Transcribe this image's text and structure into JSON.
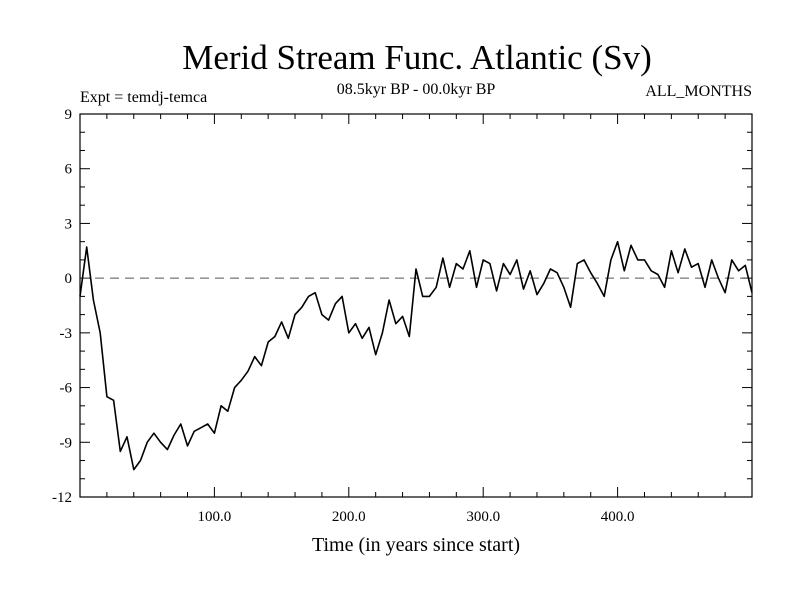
{
  "chart_data": {
    "type": "line",
    "title": "Merid Stream Func. Atlantic (Sv)",
    "subtitle_left": "Expt = temdj-temca",
    "subtitle_center": "08.5kyr BP - 00.0kyr BP",
    "subtitle_right": "ALL_MONTHS",
    "xlabel": "Time (in years since start)",
    "ylabel": "",
    "xlim": [
      0,
      500
    ],
    "ylim": [
      -12,
      9
    ],
    "xticks": [
      100,
      200,
      300,
      400
    ],
    "xtick_labels": [
      "100.0",
      "200.0",
      "300.0",
      "400.0"
    ],
    "yticks": [
      -12,
      -9,
      -6,
      -3,
      0,
      3,
      6,
      9
    ],
    "ytick_labels": [
      "-12",
      "-9",
      "-6",
      "-3",
      "0",
      "3",
      "6",
      "9"
    ],
    "reference_line": {
      "y": 0,
      "style": "dashed"
    },
    "series": [
      {
        "name": "Merid Stream Func. Atlantic",
        "x": [
          0,
          5,
          10,
          15,
          20,
          25,
          30,
          35,
          40,
          45,
          50,
          55,
          60,
          65,
          70,
          75,
          80,
          85,
          90,
          95,
          100,
          105,
          110,
          115,
          120,
          125,
          130,
          135,
          140,
          145,
          150,
          155,
          160,
          165,
          170,
          175,
          180,
          185,
          190,
          195,
          200,
          205,
          210,
          215,
          220,
          225,
          230,
          235,
          240,
          245,
          250,
          255,
          260,
          265,
          270,
          275,
          280,
          285,
          290,
          295,
          300,
          305,
          310,
          315,
          320,
          325,
          330,
          335,
          340,
          345,
          350,
          355,
          360,
          365,
          370,
          375,
          380,
          385,
          390,
          395,
          400,
          405,
          410,
          415,
          420,
          425,
          430,
          435,
          440,
          445,
          450,
          455,
          460,
          465,
          470,
          475,
          480,
          485,
          490,
          495,
          500
        ],
        "y": [
          -1.0,
          1.7,
          -1.2,
          -3.0,
          -6.5,
          -6.7,
          -9.5,
          -8.7,
          -10.5,
          -10.0,
          -9.0,
          -8.5,
          -9.0,
          -9.4,
          -8.6,
          -8.0,
          -9.2,
          -8.4,
          -8.2,
          -8.0,
          -8.5,
          -7.0,
          -7.3,
          -6.0,
          -5.6,
          -5.1,
          -4.3,
          -4.8,
          -3.5,
          -3.2,
          -2.4,
          -3.3,
          -2.0,
          -1.6,
          -1.0,
          -0.8,
          -2.0,
          -2.3,
          -1.4,
          -1.0,
          -3.0,
          -2.5,
          -3.3,
          -2.7,
          -4.2,
          -3.0,
          -1.2,
          -2.5,
          -2.1,
          -3.2,
          0.5,
          -1.0,
          -1.0,
          -0.5,
          1.1,
          -0.5,
          0.8,
          0.5,
          1.5,
          -0.5,
          1.0,
          0.8,
          -0.7,
          0.8,
          0.2,
          1.0,
          -0.6,
          0.4,
          -0.9,
          -0.3,
          0.5,
          0.3,
          -0.5,
          -1.6,
          0.8,
          1.0,
          0.3,
          -0.3,
          -1.0,
          1.0,
          2.0,
          0.4,
          1.8,
          1.0,
          1.0,
          0.4,
          0.2,
          -0.5,
          1.5,
          0.3,
          1.6,
          0.6,
          0.8,
          -0.5,
          1.0,
          0.0,
          -0.8,
          1.0,
          0.4,
          0.7,
          -0.8
        ]
      }
    ]
  }
}
